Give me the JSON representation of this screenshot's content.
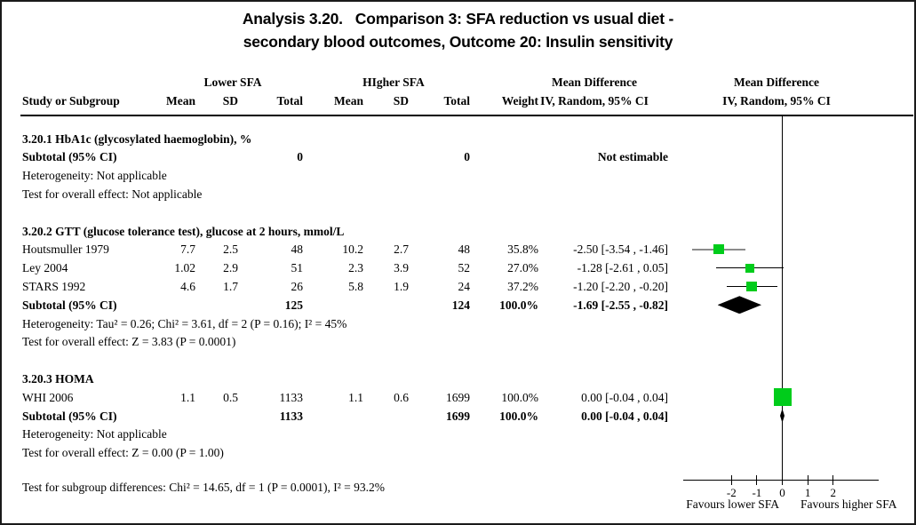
{
  "title": {
    "line1": "Analysis 3.20.   Comparison 3: SFA reduction vs usual diet -",
    "line2": "secondary blood outcomes, Outcome 20: Insulin sensitivity"
  },
  "header": {
    "group1": "Lower SFA",
    "group2": "HIgher SFA",
    "study": "Study or Subgroup",
    "mean": "Mean",
    "sd": "SD",
    "total": "Total",
    "weight": "Weight",
    "md_title": "Mean Difference",
    "md_sub": "IV, Random, 95% CI"
  },
  "labels": {
    "subtotal": "Subtotal (95% CI)",
    "not_estimable": "Not estimable"
  },
  "colors": {
    "marker_green": "#00CC1B",
    "gray_ci_line": "#8c8c8c",
    "diamond_black": "#000000"
  },
  "chart_data": {
    "type": "forest",
    "effect_label": "Mean Difference",
    "method": "IV, Random, 95% CI",
    "x_axis": {
      "ticks": [
        -2,
        -1,
        0,
        1,
        2
      ],
      "left_label": "Favours lower SFA",
      "right_label": "Favours higher SFA"
    },
    "subgroups": [
      {
        "name": "3.20.1 HbA1c (glycosylated haemoglobin), %",
        "studies": [],
        "subtotal": {
          "total1": 0,
          "total2": 0,
          "note": "Not estimable"
        },
        "heterogeneity_text": "Heterogeneity: Not applicable",
        "overall_effect_text": "Test for overall effect: Not applicable"
      },
      {
        "name": "3.20.2 GTT (glucose tolerance test), glucose at 2 hours, mmol/L",
        "studies": [
          {
            "study": "Houtsmuller 1979",
            "mean1": 7.7,
            "sd1": 2.5,
            "total1": 48,
            "mean2": 10.2,
            "sd2": 2.7,
            "total2": 48,
            "weight_pct": 35.8,
            "md": -2.5,
            "ci_low": -3.54,
            "ci_high": -1.46,
            "ci_line": "gray"
          },
          {
            "study": "Ley 2004",
            "mean1": 1.02,
            "sd1": 2.9,
            "total1": 51,
            "mean2": 2.3,
            "sd2": 3.9,
            "total2": 52,
            "weight_pct": 27.0,
            "md": -1.28,
            "ci_low": -2.61,
            "ci_high": 0.05
          },
          {
            "study": "STARS 1992",
            "mean1": 4.6,
            "sd1": 1.7,
            "total1": 26,
            "mean2": 5.8,
            "sd2": 1.9,
            "total2": 24,
            "weight_pct": 37.2,
            "md": -1.2,
            "ci_low": -2.2,
            "ci_high": -0.2
          }
        ],
        "subtotal": {
          "total1": 125,
          "total2": 124,
          "weight_pct": 100.0,
          "md": -1.69,
          "ci_low": -2.55,
          "ci_high": -0.82
        },
        "heterogeneity_text": "Heterogeneity: Tau² = 0.26; Chi² = 3.61, df = 2 (P = 0.16); I² = 45%",
        "overall_effect_text": "Test for overall effect: Z = 3.83 (P = 0.0001)"
      },
      {
        "name": "3.20.3 HOMA",
        "studies": [
          {
            "study": "WHI 2006",
            "mean1": 1.1,
            "sd1": 0.5,
            "total1": 1133,
            "mean2": 1.1,
            "sd2": 0.6,
            "total2": 1699,
            "weight_pct": 100.0,
            "md": 0.0,
            "ci_low": -0.04,
            "ci_high": 0.04
          }
        ],
        "subtotal": {
          "total1": 1133,
          "total2": 1699,
          "weight_pct": 100.0,
          "md": 0.0,
          "ci_low": -0.04,
          "ci_high": 0.04
        },
        "heterogeneity_text": "Heterogeneity: Not applicable",
        "overall_effect_text": "Test for overall effect: Z = 0.00 (P = 1.00)"
      }
    ],
    "subgroup_differences_text": "Test for subgroup differences: Chi² = 14.65, df = 1 (P = 0.0001), I² = 93.2%"
  }
}
